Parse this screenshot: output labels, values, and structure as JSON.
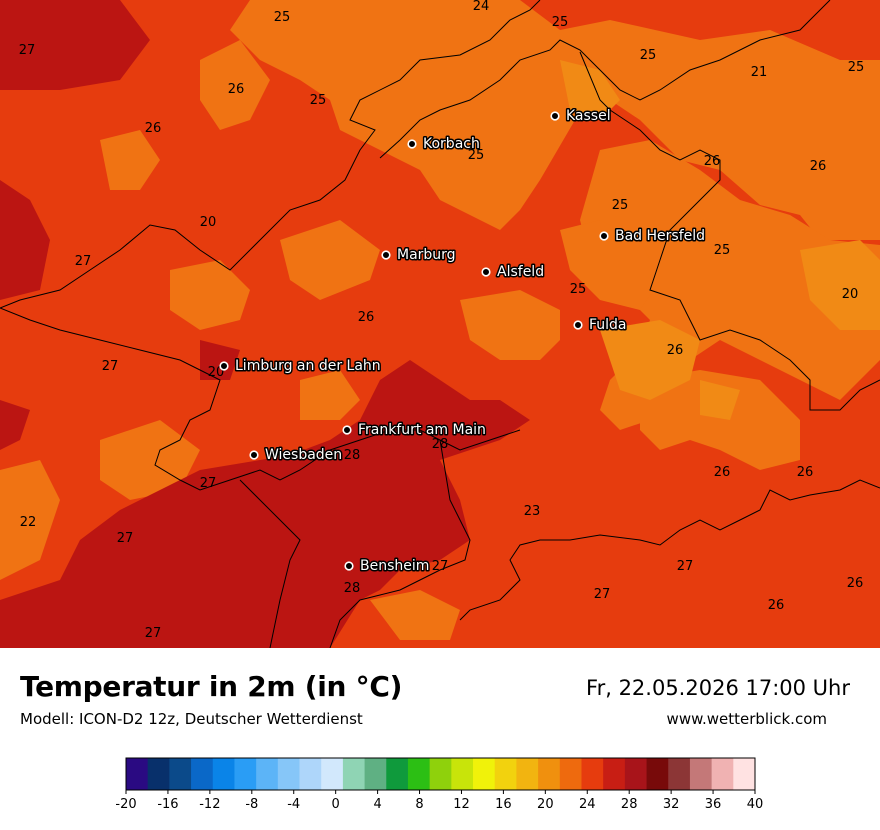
{
  "header": {
    "title": "Temperatur in 2m (in °C)",
    "model": "Modell: ICON-D2 12z, Deutscher Wetterdienst",
    "datetime": "Fr, 22.05.2026 17:00 Uhr",
    "website": "www.wetterblick.com"
  },
  "cities": [
    {
      "name": "Kassel"
    },
    {
      "name": "Korbach"
    },
    {
      "name": "Bad Hersfeld"
    },
    {
      "name": "Marburg"
    },
    {
      "name": "Alsfeld"
    },
    {
      "name": "Fulda"
    },
    {
      "name": "Limburg an der Lahn"
    },
    {
      "name": "Frankfurt am Main"
    },
    {
      "name": "Wiesbaden"
    },
    {
      "name": "Bensheim"
    }
  ],
  "temperature_labels": [
    "25",
    "24",
    "25",
    "27",
    "25",
    "25",
    "21",
    "26",
    "25",
    "26",
    "25",
    "26",
    "26",
    "25",
    "20",
    "25",
    "27",
    "26",
    "25",
    "20",
    "26",
    "20",
    "27",
    "27",
    "28",
    "28",
    "26",
    "26",
    "27",
    "22",
    "23",
    "27",
    "27",
    "27",
    "26",
    "28",
    "26",
    "27"
  ],
  "scale": {
    "ticks": [
      "-20",
      "-16",
      "-12",
      "-8",
      "-4",
      "0",
      "4",
      "8",
      "12",
      "16",
      "20",
      "24",
      "28",
      "32",
      "36",
      "40"
    ],
    "colors": [
      "#2a0a82",
      "#08306b",
      "#0b4a8a",
      "#0a68c8",
      "#0a84e8",
      "#2a9df5",
      "#5cb4f7",
      "#86c6f8",
      "#aed6fa",
      "#d2e8fc",
      "#8fd4b4",
      "#5fb083",
      "#0f9a3c",
      "#2cbf14",
      "#8fd10c",
      "#c8e40a",
      "#f0f20a",
      "#f2d20e",
      "#f2b410",
      "#f0900e",
      "#ee6a0e",
      "#e63c0e",
      "#c81e14",
      "#a8141a",
      "#780a0a",
      "#8c3636",
      "#c47878",
      "#f0b2b2",
      "#ffe2e2"
    ]
  },
  "colors": {
    "t20_22": "#f18a15",
    "t23_24": "#f07313",
    "t25_26": "#e63c0e",
    "t27_28": "#bb1512",
    "border": "#000000"
  }
}
